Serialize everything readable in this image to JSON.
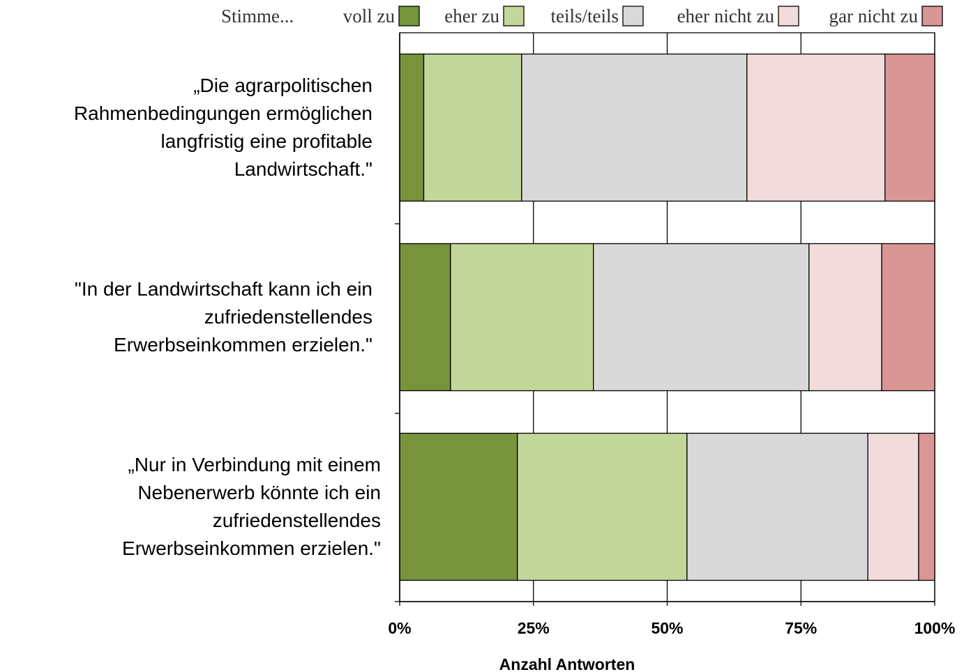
{
  "chart_data": {
    "type": "stacked-bar-horizontal",
    "legend_title": "Stimme...",
    "categories": [
      "„Die agrarpolitischen\nRahmenbedingungen ermöglichen\nlangfristig eine profitable\nLandwirtschaft.\"",
      "\"In der Landwirtschaft kann ich ein\nzufriedenstellendes\nErwerbseinkommen erzielen.\"",
      "„Nur in Verbindung mit einem\nNebenerwerb könnte ich ein\nzufriedenstellendes\nErwerbseinkommen erzielen.\""
    ],
    "series": [
      {
        "name": "voll zu",
        "color": "#77933c",
        "values": [
          4.5,
          9.5,
          22.0
        ]
      },
      {
        "name": "eher zu",
        "color": "#c4d79b",
        "values": [
          18.3,
          26.7,
          31.7
        ]
      },
      {
        "name": "teils/teils",
        "color": "#d9d9d9",
        "values": [
          42.1,
          40.3,
          33.8
        ]
      },
      {
        "name": "eher nicht zu",
        "color": "#f2dcdb",
        "values": [
          25.8,
          13.6,
          9.5
        ]
      },
      {
        "name": "gar nicht zu",
        "color": "#d99694",
        "values": [
          9.3,
          9.9,
          3.0
        ]
      }
    ],
    "xlim": [
      0,
      100
    ],
    "xticks": [
      {
        "value": 0,
        "label": "0%"
      },
      {
        "value": 25,
        "label": "25%"
      },
      {
        "value": 50,
        "label": "50%"
      },
      {
        "value": 75,
        "label": "75%"
      },
      {
        "value": 100,
        "label": "100%"
      }
    ],
    "xlabel": "Anzahl Antworten",
    "grid": true,
    "legend_position": "top"
  }
}
